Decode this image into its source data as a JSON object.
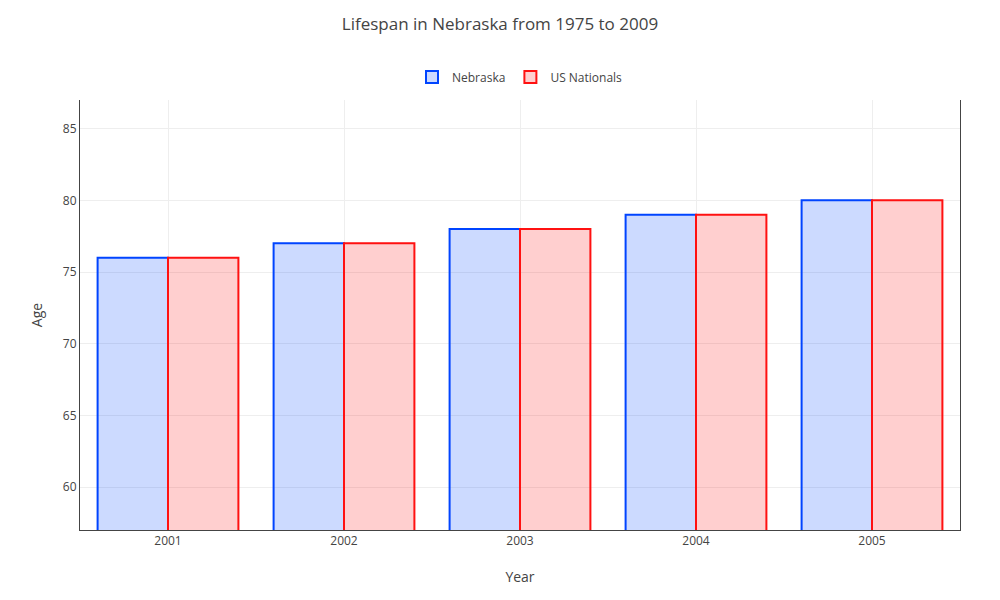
{
  "chart_data": {
    "type": "bar",
    "title": "Lifespan in Nebraska from 1975 to 2009",
    "xlabel": "Year",
    "ylabel": "Age",
    "categories": [
      "2001",
      "2002",
      "2003",
      "2004",
      "2005"
    ],
    "series": [
      {
        "name": "Nebraska",
        "color": "#0044ff",
        "values": [
          76,
          77,
          78,
          79,
          80
        ]
      },
      {
        "name": "US Nationals",
        "color": "#ff1111",
        "values": [
          76,
          77,
          78,
          79,
          80
        ]
      }
    ],
    "ylim": [
      57,
      87
    ],
    "yticks": [
      60,
      65,
      70,
      75,
      80,
      85
    ],
    "grid": true,
    "legend": "top"
  }
}
